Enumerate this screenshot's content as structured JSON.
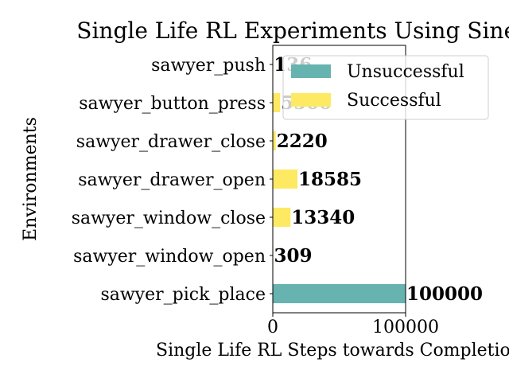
{
  "chart_data": {
    "type": "bar",
    "orientation": "horizontal",
    "title": "Single Life RL Experiments Using Sine-Cosine",
    "xlabel": "Single Life RL Steps towards Completion",
    "ylabel": "Environments",
    "categories": [
      "sawyer_push",
      "sawyer_button_press",
      "sawyer_drawer_close",
      "sawyer_drawer_open",
      "sawyer_window_close",
      "sawyer_window_open",
      "sawyer_pick_place"
    ],
    "values": [
      136,
      5500,
      2220,
      18585,
      13340,
      309,
      100000
    ],
    "value_labels": [
      "136",
      "5500",
      "2220",
      "18585",
      "13340",
      "309",
      "100000"
    ],
    "status": [
      "Successful",
      "Successful",
      "Successful",
      "Successful",
      "Successful",
      "Successful",
      "Unsuccessful"
    ],
    "xlim": [
      0,
      100000
    ],
    "xticks": [
      0,
      100000
    ],
    "xtick_labels": [
      "0",
      "100000"
    ],
    "legend": {
      "placement": "top-right",
      "entries": [
        {
          "label": "Unsuccessful",
          "color": "#66b3b0"
        },
        {
          "label": "Successful",
          "color": "#fde962"
        }
      ]
    },
    "colors": {
      "Unsuccessful": "#66b3b0",
      "Successful": "#fde962"
    },
    "grid": false
  }
}
